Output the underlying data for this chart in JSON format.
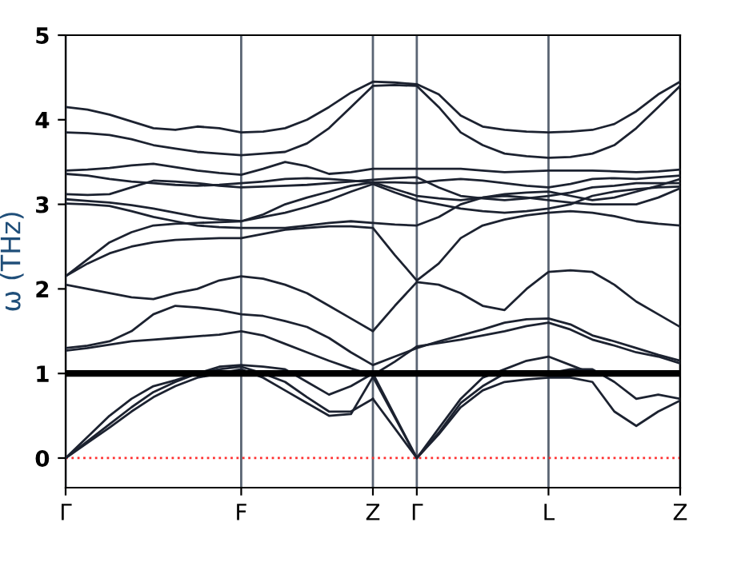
{
  "chart_data": {
    "type": "line",
    "ylabel": "ω (THz)",
    "categories": [
      "Γ",
      null,
      null,
      null,
      null,
      null,
      null,
      null,
      "F",
      null,
      null,
      null,
      null,
      null,
      "Z",
      null,
      "Γ",
      null,
      null,
      null,
      null,
      null,
      "L",
      null,
      null,
      null,
      null,
      null,
      "Z"
    ],
    "ylim": [
      -0.35,
      5.0
    ],
    "yticks": [
      0,
      1,
      2,
      3,
      4,
      5
    ],
    "grid": "x",
    "legend": false,
    "marker": "none",
    "line_style": "solid",
    "series": [
      {
        "color": "#1c2230",
        "values": [
          4.15,
          4.12,
          4.06,
          3.98,
          3.9,
          3.88,
          3.92,
          3.9,
          3.85,
          3.86,
          3.9,
          4.0,
          4.15,
          4.32,
          4.45,
          4.44,
          4.42,
          4.3,
          4.05,
          3.92,
          3.88,
          3.86,
          3.85,
          3.86,
          3.88,
          3.95,
          4.1,
          4.3,
          4.45
        ]
      },
      {
        "color": "#1c2230",
        "values": [
          3.85,
          3.84,
          3.82,
          3.77,
          3.7,
          3.66,
          3.62,
          3.6,
          3.58,
          3.6,
          3.62,
          3.72,
          3.9,
          4.15,
          4.4,
          4.41,
          4.4,
          4.15,
          3.85,
          3.7,
          3.6,
          3.57,
          3.55,
          3.56,
          3.6,
          3.7,
          3.9,
          4.15,
          4.4
        ]
      },
      {
        "color": "#1c2230",
        "values": [
          3.4,
          3.41,
          3.43,
          3.46,
          3.48,
          3.44,
          3.4,
          3.37,
          3.35,
          3.42,
          3.5,
          3.45,
          3.36,
          3.38,
          3.42,
          3.42,
          3.42,
          3.42,
          3.42,
          3.4,
          3.38,
          3.39,
          3.4,
          3.4,
          3.4,
          3.39,
          3.38,
          3.39,
          3.41
        ]
      },
      {
        "color": "#1c2230",
        "values": [
          3.36,
          3.34,
          3.3,
          3.27,
          3.25,
          3.23,
          3.22,
          3.23,
          3.25,
          3.27,
          3.3,
          3.31,
          3.3,
          3.28,
          3.26,
          3.26,
          3.25,
          3.28,
          3.3,
          3.28,
          3.25,
          3.22,
          3.2,
          3.24,
          3.3,
          3.31,
          3.3,
          3.32,
          3.34
        ]
      },
      {
        "color": "#1c2230",
        "values": [
          3.12,
          3.11,
          3.12,
          3.2,
          3.28,
          3.27,
          3.25,
          3.22,
          3.2,
          3.21,
          3.22,
          3.23,
          3.25,
          3.27,
          3.29,
          3.31,
          3.32,
          3.2,
          3.1,
          3.07,
          3.05,
          3.07,
          3.1,
          3.14,
          3.2,
          3.22,
          3.25,
          3.25,
          3.25
        ]
      },
      {
        "color": "#1c2230",
        "values": [
          3.06,
          3.04,
          3.02,
          2.99,
          2.95,
          2.9,
          2.85,
          2.82,
          2.8,
          2.88,
          3.0,
          3.08,
          3.15,
          3.22,
          3.26,
          3.18,
          3.1,
          3.07,
          3.05,
          3.08,
          3.12,
          3.14,
          3.15,
          3.1,
          3.05,
          3.08,
          3.15,
          3.22,
          3.3
        ]
      },
      {
        "color": "#1c2230",
        "values": [
          3.01,
          3.0,
          2.98,
          2.92,
          2.85,
          2.8,
          2.75,
          2.73,
          2.72,
          2.72,
          2.72,
          2.75,
          2.78,
          2.8,
          2.78,
          2.76,
          2.75,
          2.85,
          3.0,
          3.08,
          3.1,
          3.08,
          3.05,
          3.02,
          3.0,
          3.0,
          3.0,
          3.08,
          3.19
        ]
      },
      {
        "color": "#1c2230",
        "values": [
          2.15,
          2.35,
          2.55,
          2.67,
          2.75,
          2.77,
          2.78,
          2.79,
          2.8,
          2.85,
          2.9,
          2.97,
          3.05,
          3.15,
          3.24,
          3.14,
          3.05,
          3.0,
          2.95,
          2.92,
          2.9,
          2.92,
          2.95,
          3.0,
          3.1,
          3.15,
          3.18,
          3.2,
          3.21
        ]
      },
      {
        "color": "#1c2230",
        "values": [
          2.15,
          2.3,
          2.42,
          2.5,
          2.55,
          2.58,
          2.59,
          2.6,
          2.6,
          2.65,
          2.7,
          2.72,
          2.74,
          2.74,
          2.72,
          2.4,
          2.1,
          2.3,
          2.6,
          2.75,
          2.82,
          2.87,
          2.9,
          2.92,
          2.9,
          2.86,
          2.8,
          2.77,
          2.75
        ]
      },
      {
        "color": "#1c2230",
        "values": [
          2.05,
          2.0,
          1.95,
          1.9,
          1.88,
          1.95,
          2.0,
          2.1,
          2.15,
          2.12,
          2.05,
          1.95,
          1.8,
          1.65,
          1.5,
          1.8,
          2.08,
          2.05,
          1.95,
          1.8,
          1.75,
          2.0,
          2.2,
          2.22,
          2.2,
          2.05,
          1.85,
          1.7,
          1.55
        ]
      },
      {
        "color": "#1c2230",
        "values": [
          1.3,
          1.33,
          1.38,
          1.5,
          1.7,
          1.8,
          1.78,
          1.75,
          1.7,
          1.68,
          1.62,
          1.55,
          1.42,
          1.25,
          1.1,
          1.2,
          1.3,
          1.38,
          1.45,
          1.52,
          1.6,
          1.64,
          1.65,
          1.58,
          1.45,
          1.38,
          1.3,
          1.22,
          1.15
        ]
      },
      {
        "color": "#1c2230",
        "values": [
          1.27,
          1.3,
          1.34,
          1.38,
          1.4,
          1.42,
          1.44,
          1.46,
          1.5,
          1.45,
          1.35,
          1.25,
          1.15,
          1.06,
          0.98,
          1.14,
          1.32,
          1.36,
          1.4,
          1.45,
          1.5,
          1.56,
          1.6,
          1.52,
          1.4,
          1.33,
          1.25,
          1.2,
          1.12
        ]
      },
      {
        "color": "#1c2230",
        "values": [
          0,
          0.25,
          0.5,
          0.7,
          0.85,
          0.92,
          1.0,
          1.08,
          1.1,
          1.08,
          1.05,
          0.9,
          0.75,
          0.85,
          1.0,
          null,
          null,
          null,
          null,
          null,
          null,
          null,
          null,
          null,
          null,
          null,
          null,
          null,
          null
        ]
      },
      {
        "color": "#1c2230",
        "values": [
          null,
          null,
          null,
          null,
          null,
          null,
          null,
          null,
          null,
          null,
          null,
          null,
          null,
          null,
          1.0,
          0.5,
          0,
          0.35,
          0.7,
          0.95,
          1.05,
          1.15,
          1.2,
          1.1,
          1.0,
          1.02,
          1.0,
          1.0,
          1.0
        ]
      },
      {
        "color": "#1c2230",
        "values": [
          0,
          0.2,
          0.4,
          0.6,
          0.78,
          0.9,
          1.0,
          1.05,
          1.08,
          1.0,
          0.9,
          0.72,
          0.55,
          0.55,
          0.7,
          null,
          null,
          null,
          null,
          null,
          null,
          null,
          null,
          null,
          null,
          null,
          null,
          null,
          null
        ]
      },
      {
        "color": "#1c2230",
        "values": [
          null,
          null,
          null,
          null,
          null,
          null,
          null,
          null,
          null,
          null,
          null,
          null,
          null,
          null,
          0.7,
          0.35,
          0,
          0.3,
          0.65,
          0.85,
          1.0,
          1.0,
          1.0,
          1.05,
          1.05,
          0.9,
          0.7,
          0.75,
          0.7
        ]
      },
      {
        "color": "#1c2230",
        "values": [
          0,
          0.18,
          0.36,
          0.55,
          0.72,
          0.85,
          0.95,
          1.0,
          1.05,
          0.95,
          0.8,
          0.65,
          0.5,
          0.52,
          0.96,
          null,
          null,
          null,
          null,
          null,
          null,
          null,
          null,
          null,
          null,
          null,
          null,
          null,
          null
        ]
      },
      {
        "color": "#1c2230",
        "values": [
          null,
          null,
          null,
          null,
          null,
          null,
          null,
          null,
          null,
          null,
          null,
          null,
          null,
          null,
          0.96,
          0.48,
          0,
          0.28,
          0.6,
          0.8,
          0.9,
          0.93,
          0.95,
          0.95,
          0.9,
          0.55,
          0.38,
          0.55,
          0.68
        ]
      }
    ],
    "ref_lines": [
      {
        "axis": "y",
        "value": 1,
        "color": "#000000",
        "line_style": "solid"
      },
      {
        "axis": "y",
        "value": 0,
        "color": "#ff3030",
        "line_style": "dotted"
      }
    ]
  }
}
